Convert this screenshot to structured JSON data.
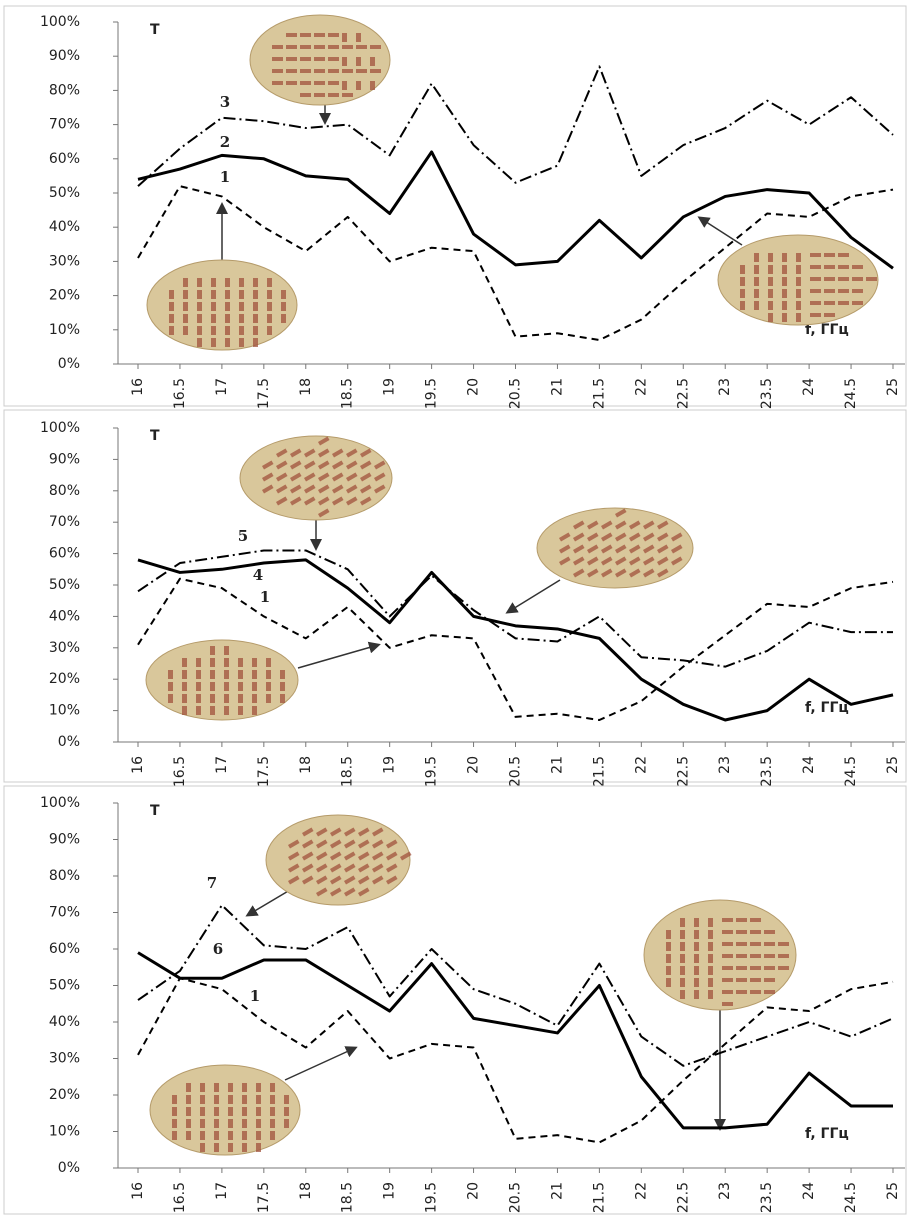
{
  "chart_data": [
    {
      "type": "line",
      "y_label": "T",
      "x_label": "f, ГГц",
      "categories": [
        "16",
        "16.5",
        "17",
        "17.5",
        "18",
        "18.5",
        "19",
        "19.5",
        "20",
        "20.5",
        "21",
        "21.5",
        "22",
        "22.5",
        "23",
        "23.5",
        "24",
        "24.5",
        "25"
      ],
      "ylim": [
        0,
        100
      ],
      "yticks": [
        {
          "value": 0,
          "label": "0%"
        },
        {
          "value": 10,
          "label": "10%"
        },
        {
          "value": 20,
          "label": "20%"
        },
        {
          "value": 30,
          "label": "30%"
        },
        {
          "value": 40,
          "label": "40%"
        },
        {
          "value": 50,
          "label": "50%"
        },
        {
          "value": 60,
          "label": "60%"
        },
        {
          "value": 70,
          "label": "70%"
        },
        {
          "value": 80,
          "label": "80%"
        },
        {
          "value": 90,
          "label": "90%"
        },
        {
          "value": 100,
          "label": "100%"
        }
      ],
      "series": [
        {
          "name": "1",
          "color": "#000000",
          "line_style": "dashed",
          "values": [
            31,
            52,
            49,
            40,
            33,
            43,
            30,
            34,
            33,
            8,
            9,
            7,
            13,
            24,
            34,
            44,
            43,
            49,
            51
          ]
        },
        {
          "name": "2",
          "color": "#000000",
          "line_style": "solid",
          "values": [
            54,
            57,
            61,
            60,
            55,
            54,
            44,
            62,
            38,
            29,
            30,
            42,
            31,
            43,
            49,
            51,
            50,
            37,
            28
          ]
        },
        {
          "name": "3",
          "color": "#000000",
          "line_style": "dashdot",
          "values": [
            52,
            63,
            72,
            71,
            69,
            70,
            61,
            82,
            64,
            53,
            58,
            87,
            55,
            64,
            69,
            77,
            70,
            78,
            67
          ]
        }
      ]
    },
    {
      "type": "line",
      "y_label": "T",
      "x_label": "f, ГГц",
      "categories": [
        "16",
        "16.5",
        "17",
        "17.5",
        "18",
        "18.5",
        "19",
        "19.5",
        "20",
        "20.5",
        "21",
        "21.5",
        "22",
        "22.5",
        "23",
        "23.5",
        "24",
        "24.5",
        "25"
      ],
      "ylim": [
        0,
        100
      ],
      "yticks": [
        {
          "value": 0,
          "label": "0%"
        },
        {
          "value": 10,
          "label": "10%"
        },
        {
          "value": 20,
          "label": "20%"
        },
        {
          "value": 30,
          "label": "30%"
        },
        {
          "value": 40,
          "label": "40%"
        },
        {
          "value": 50,
          "label": "50%"
        },
        {
          "value": 60,
          "label": "60%"
        },
        {
          "value": 70,
          "label": "70%"
        },
        {
          "value": 80,
          "label": "80%"
        },
        {
          "value": 90,
          "label": "90%"
        },
        {
          "value": 100,
          "label": "100%"
        }
      ],
      "series": [
        {
          "name": "1",
          "color": "#000000",
          "line_style": "dashed",
          "values": [
            31,
            52,
            49,
            40,
            33,
            43,
            30,
            34,
            33,
            8,
            9,
            7,
            13,
            24,
            34,
            44,
            43,
            49,
            51
          ]
        },
        {
          "name": "4",
          "color": "#000000",
          "line_style": "solid",
          "values": [
            58,
            54,
            55,
            57,
            58,
            49,
            38,
            54,
            40,
            37,
            36,
            33,
            20,
            12,
            7,
            10,
            20,
            12,
            15
          ]
        },
        {
          "name": "5",
          "color": "#000000",
          "line_style": "dashdot",
          "values": [
            48,
            57,
            59,
            61,
            61,
            55,
            40,
            53,
            42,
            33,
            32,
            40,
            27,
            26,
            24,
            29,
            38,
            35,
            35
          ]
        }
      ]
    },
    {
      "type": "line",
      "y_label": "T",
      "x_label": "f, ГГц",
      "categories": [
        "16",
        "16.5",
        "17",
        "17.5",
        "18",
        "18.5",
        "19",
        "19.5",
        "20",
        "20.5",
        "21",
        "21.5",
        "22",
        "22.5",
        "23",
        "23.5",
        "24",
        "24.5",
        "25"
      ],
      "ylim": [
        0,
        100
      ],
      "yticks": [
        {
          "value": 0,
          "label": "0%"
        },
        {
          "value": 10,
          "label": "10%"
        },
        {
          "value": 20,
          "label": "20%"
        },
        {
          "value": 30,
          "label": "30%"
        },
        {
          "value": 40,
          "label": "40%"
        },
        {
          "value": 50,
          "label": "50%"
        },
        {
          "value": 60,
          "label": "60%"
        },
        {
          "value": 70,
          "label": "70%"
        },
        {
          "value": 80,
          "label": "80%"
        },
        {
          "value": 90,
          "label": "90%"
        },
        {
          "value": 100,
          "label": "100%"
        }
      ],
      "series": [
        {
          "name": "1",
          "color": "#000000",
          "line_style": "dashed",
          "values": [
            31,
            52,
            49,
            40,
            33,
            43,
            30,
            34,
            33,
            8,
            9,
            7,
            13,
            24,
            34,
            44,
            43,
            49,
            51
          ]
        },
        {
          "name": "6",
          "color": "#000000",
          "line_style": "solid",
          "values": [
            59,
            52,
            52,
            57,
            57,
            50,
            43,
            56,
            41,
            39,
            37,
            50,
            25,
            11,
            11,
            12,
            26,
            17,
            17
          ]
        },
        {
          "name": "7",
          "color": "#000000",
          "line_style": "dashdot",
          "values": [
            46,
            54,
            72,
            61,
            60,
            66,
            47,
            60,
            49,
            45,
            39,
            56,
            36,
            28,
            32,
            36,
            40,
            36,
            41
          ]
        }
      ]
    }
  ]
}
